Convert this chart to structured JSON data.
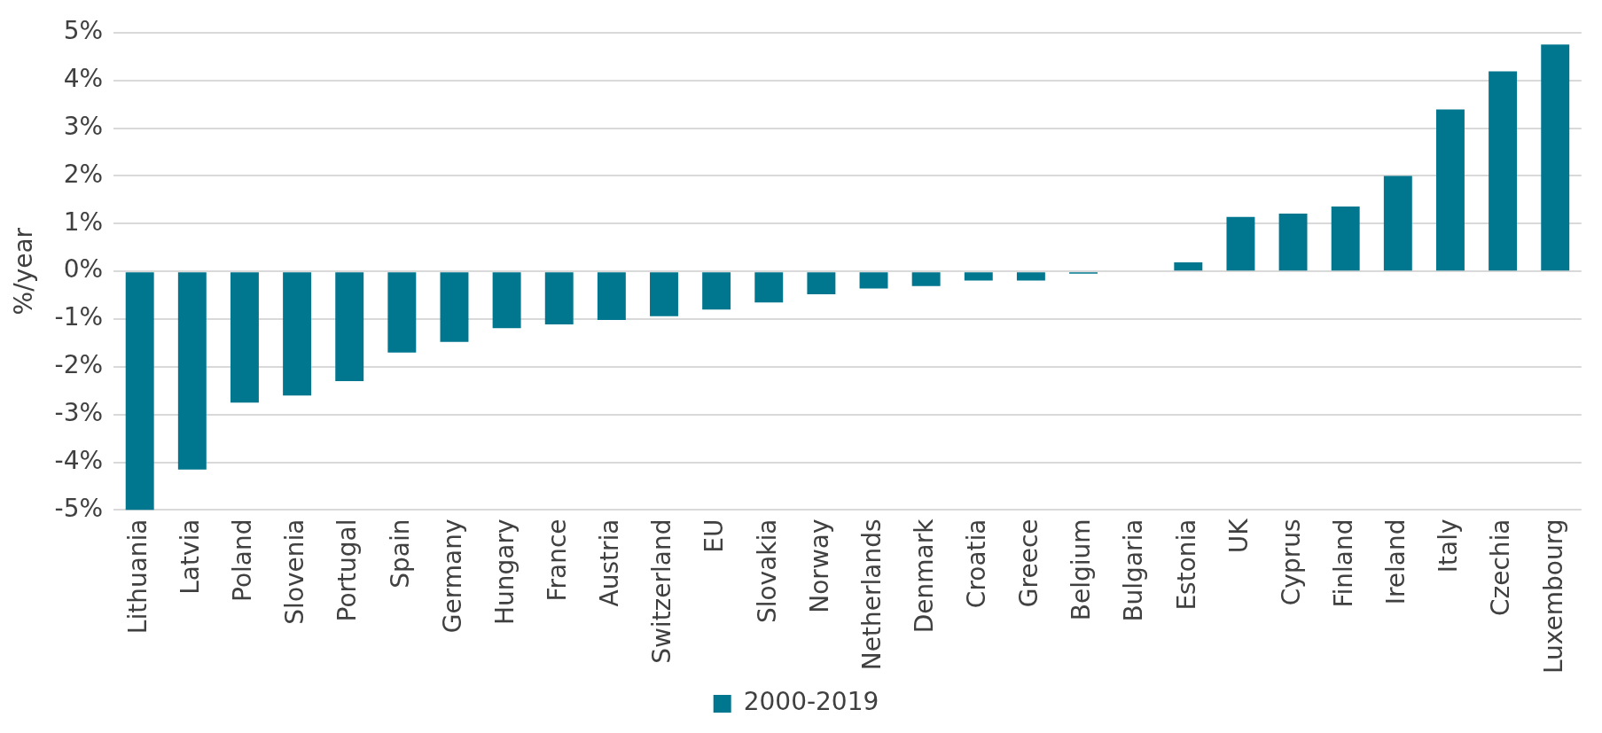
{
  "chart_data": {
    "type": "bar",
    "ylabel": "%/year",
    "categories": [
      "Lithuania",
      "Latvia",
      "Poland",
      "Slovenia",
      "Portugal",
      "Spain",
      "Germany",
      "Hungary",
      "France",
      "Austria",
      "Switzerland",
      "EU",
      "Slovakia",
      "Norway",
      "Netherlands",
      "Denmark",
      "Croatia",
      "Greece",
      "Belgium",
      "Bulgaria",
      "Estonia",
      "UK",
      "Cyprus",
      "Finland",
      "Ireland",
      "Italy",
      "Czechia",
      "Luxembourg"
    ],
    "series": [
      {
        "name": "2000-2019",
        "color": "#00778f",
        "values": [
          -5.0,
          -4.15,
          -2.75,
          -2.6,
          -2.3,
          -1.7,
          -1.48,
          -1.19,
          -1.11,
          -1.02,
          -0.94,
          -0.8,
          -0.65,
          -0.48,
          -0.36,
          -0.31,
          -0.19,
          -0.19,
          -0.05,
          0,
          0.19,
          1.14,
          1.21,
          1.36,
          2.0,
          3.39,
          4.19,
          4.75
        ]
      }
    ],
    "ylim": [
      -5,
      5
    ],
    "yticks": [
      {
        "value": -5,
        "label": "-5%"
      },
      {
        "value": -4,
        "label": "-4%"
      },
      {
        "value": -3,
        "label": "-3%"
      },
      {
        "value": -2,
        "label": "-2%"
      },
      {
        "value": -1,
        "label": "-1%"
      },
      {
        "value": 0,
        "label": "0%"
      },
      {
        "value": 1,
        "label": "1%"
      },
      {
        "value": 2,
        "label": "2%"
      },
      {
        "value": 3,
        "label": "3%"
      },
      {
        "value": 4,
        "label": "4%"
      },
      {
        "value": 5,
        "label": "5%"
      }
    ],
    "grid": "y",
    "legend": "bottom"
  }
}
